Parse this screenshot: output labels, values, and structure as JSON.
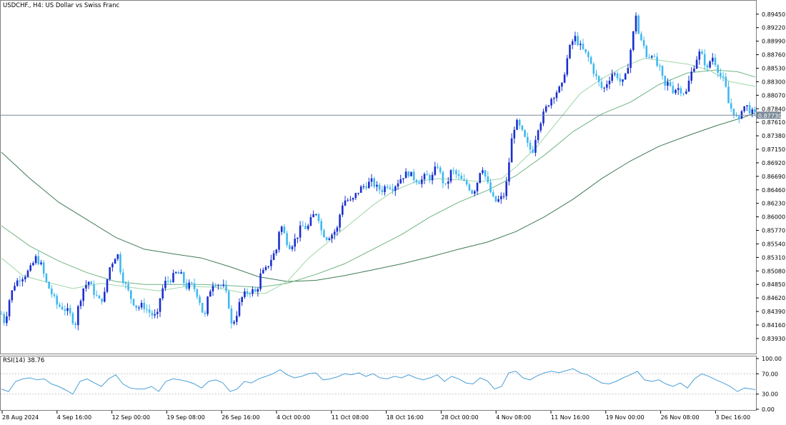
{
  "chart_data": {
    "type": "candlestick",
    "symbol_label": "USDCHF.,",
    "timeframe_label": "H4:",
    "description_label": "US Dollar vs Swiss Franc",
    "current_price_label": "0.87730",
    "current_price": 0.8773,
    "price_ylim": [
      0.8371,
      0.8963
    ],
    "price_ticks": [
      "0.89450",
      "0.89220",
      "0.88990",
      "0.88760",
      "0.88530",
      "0.88300",
      "0.88070",
      "0.87840",
      "0.87610",
      "0.87380",
      "0.87150",
      "0.86920",
      "0.86690",
      "0.86460",
      "0.86230",
      "0.86000",
      "0.85770",
      "0.85540",
      "0.85310",
      "0.85080",
      "0.84850",
      "0.84620",
      "0.84390",
      "0.84160",
      "0.83930"
    ],
    "time_labels": [
      "28 Aug 2024",
      "4 Sep 16:00",
      "12 Sep 00:00",
      "19 Sep 08:00",
      "26 Sep 16:00",
      "4 Oct 00:00",
      "11 Oct 08:00",
      "18 Oct 16:00",
      "28 Oct 00:00",
      "4 Nov 08:00",
      "11 Nov 16:00",
      "19 Nov 00:00",
      "26 Nov 08:00",
      "3 Dec 16:00"
    ],
    "price_path": [
      [
        0,
        0.8435
      ],
      [
        5,
        0.8418
      ],
      [
        10,
        0.8455
      ],
      [
        18,
        0.8485
      ],
      [
        25,
        0.8495
      ],
      [
        32,
        0.85
      ],
      [
        40,
        0.851
      ],
      [
        48,
        0.853
      ],
      [
        55,
        0.852
      ],
      [
        62,
        0.849
      ],
      [
        70,
        0.847
      ],
      [
        78,
        0.845
      ],
      [
        86,
        0.8445
      ],
      [
        92,
        0.844
      ],
      [
        98,
        0.843
      ],
      [
        103,
        0.8415
      ],
      [
        108,
        0.845
      ],
      [
        115,
        0.848
      ],
      [
        122,
        0.849
      ],
      [
        130,
        0.847
      ],
      [
        138,
        0.8455
      ],
      [
        145,
        0.847
      ],
      [
        150,
        0.851
      ],
      [
        156,
        0.8525
      ],
      [
        162,
        0.854
      ],
      [
        168,
        0.85
      ],
      [
        175,
        0.848
      ],
      [
        182,
        0.846
      ],
      [
        190,
        0.8445
      ],
      [
        198,
        0.845
      ],
      [
        205,
        0.844
      ],
      [
        212,
        0.8432
      ],
      [
        218,
        0.843
      ],
      [
        223,
        0.847
      ],
      [
        230,
        0.849
      ],
      [
        238,
        0.8495
      ],
      [
        245,
        0.8505
      ],
      [
        252,
        0.85
      ],
      [
        258,
        0.848
      ],
      [
        265,
        0.8485
      ],
      [
        272,
        0.8475
      ],
      [
        278,
        0.8455
      ],
      [
        284,
        0.8425
      ],
      [
        290,
        0.847
      ],
      [
        297,
        0.849
      ],
      [
        304,
        0.8485
      ],
      [
        311,
        0.848
      ],
      [
        317,
        0.846
      ],
      [
        322,
        0.8415
      ],
      [
        328,
        0.843
      ],
      [
        335,
        0.846
      ],
      [
        342,
        0.847
      ],
      [
        350,
        0.8475
      ],
      [
        357,
        0.847
      ],
      [
        362,
        0.85
      ],
      [
        370,
        0.851
      ],
      [
        378,
        0.853
      ],
      [
        385,
        0.8545
      ],
      [
        390,
        0.859
      ],
      [
        396,
        0.857
      ],
      [
        402,
        0.855
      ],
      [
        408,
        0.8555
      ],
      [
        415,
        0.857
      ],
      [
        420,
        0.8585
      ],
      [
        428,
        0.858
      ],
      [
        435,
        0.86
      ],
      [
        442,
        0.861
      ],
      [
        448,
        0.8575
      ],
      [
        455,
        0.8565
      ],
      [
        462,
        0.857
      ],
      [
        470,
        0.858
      ],
      [
        476,
        0.862
      ],
      [
        482,
        0.863
      ],
      [
        490,
        0.8625
      ],
      [
        497,
        0.864
      ],
      [
        504,
        0.865
      ],
      [
        511,
        0.8655
      ],
      [
        518,
        0.866
      ],
      [
        525,
        0.865
      ],
      [
        532,
        0.8645
      ],
      [
        540,
        0.8655
      ],
      [
        548,
        0.865
      ],
      [
        555,
        0.866
      ],
      [
        562,
        0.867
      ],
      [
        570,
        0.8675
      ],
      [
        578,
        0.8665
      ],
      [
        586,
        0.866
      ],
      [
        594,
        0.867
      ],
      [
        602,
        0.8665
      ],
      [
        610,
        0.869
      ],
      [
        616,
        0.8665
      ],
      [
        622,
        0.865
      ],
      [
        630,
        0.868
      ],
      [
        638,
        0.867
      ],
      [
        645,
        0.866
      ],
      [
        652,
        0.8655
      ],
      [
        660,
        0.864
      ],
      [
        666,
        0.866
      ],
      [
        672,
        0.869
      ],
      [
        678,
        0.8665
      ],
      [
        685,
        0.864
      ],
      [
        690,
        0.8625
      ],
      [
        698,
        0.863
      ],
      [
        705,
        0.864
      ],
      [
        710,
        0.869
      ],
      [
        716,
        0.875
      ],
      [
        722,
        0.876
      ],
      [
        730,
        0.874
      ],
      [
        737,
        0.872
      ],
      [
        743,
        0.871
      ],
      [
        750,
        0.875
      ],
      [
        757,
        0.877
      ],
      [
        764,
        0.879
      ],
      [
        771,
        0.8805
      ],
      [
        778,
        0.8815
      ],
      [
        784,
        0.882
      ],
      [
        790,
        0.886
      ],
      [
        797,
        0.8895
      ],
      [
        803,
        0.8905
      ],
      [
        810,
        0.889
      ],
      [
        816,
        0.888
      ],
      [
        822,
        0.887
      ],
      [
        828,
        0.885
      ],
      [
        835,
        0.883
      ],
      [
        842,
        0.8815
      ],
      [
        848,
        0.883
      ],
      [
        855,
        0.8845
      ],
      [
        862,
        0.884
      ],
      [
        868,
        0.8825
      ],
      [
        874,
        0.884
      ],
      [
        880,
        0.888
      ],
      [
        884,
        0.891
      ],
      [
        888,
        0.8945
      ],
      [
        893,
        0.89
      ],
      [
        898,
        0.8895
      ],
      [
        904,
        0.887
      ],
      [
        910,
        0.888
      ],
      [
        916,
        0.886
      ],
      [
        922,
        0.885
      ],
      [
        928,
        0.882
      ],
      [
        934,
        0.883
      ],
      [
        940,
        0.8815
      ],
      [
        946,
        0.882
      ],
      [
        952,
        0.8815
      ],
      [
        958,
        0.881
      ],
      [
        964,
        0.884
      ],
      [
        970,
        0.886
      ],
      [
        976,
        0.888
      ],
      [
        982,
        0.887
      ],
      [
        988,
        0.885
      ],
      [
        994,
        0.8875
      ],
      [
        1000,
        0.886
      ],
      [
        1006,
        0.884
      ],
      [
        1012,
        0.883
      ],
      [
        1018,
        0.879
      ],
      [
        1024,
        0.878
      ],
      [
        1028,
        0.877
      ],
      [
        1032,
        0.876
      ],
      [
        1036,
        0.8785
      ],
      [
        1042,
        0.879
      ],
      [
        1048,
        0.878
      ],
      [
        1055,
        0.8773
      ]
    ],
    "ma_slow": [
      [
        0,
        0.871
      ],
      [
        40,
        0.8665
      ],
      [
        80,
        0.8625
      ],
      [
        120,
        0.8595
      ],
      [
        160,
        0.8565
      ],
      [
        200,
        0.8545
      ],
      [
        240,
        0.8537
      ],
      [
        280,
        0.853
      ],
      [
        320,
        0.8515
      ],
      [
        360,
        0.8498
      ],
      [
        400,
        0.849
      ],
      [
        440,
        0.8492
      ],
      [
        480,
        0.85
      ],
      [
        520,
        0.851
      ],
      [
        560,
        0.852
      ],
      [
        600,
        0.8532
      ],
      [
        640,
        0.8545
      ],
      [
        680,
        0.8557
      ],
      [
        720,
        0.8575
      ],
      [
        760,
        0.86
      ],
      [
        800,
        0.863
      ],
      [
        840,
        0.8665
      ],
      [
        880,
        0.8695
      ],
      [
        920,
        0.872
      ],
      [
        960,
        0.8738
      ],
      [
        1000,
        0.8755
      ],
      [
        1040,
        0.877
      ],
      [
        1055,
        0.8777
      ]
    ],
    "ma_mid": [
      [
        0,
        0.8585
      ],
      [
        40,
        0.855
      ],
      [
        80,
        0.8525
      ],
      [
        120,
        0.8505
      ],
      [
        160,
        0.849
      ],
      [
        200,
        0.8485
      ],
      [
        240,
        0.8485
      ],
      [
        280,
        0.8485
      ],
      [
        320,
        0.8483
      ],
      [
        360,
        0.848
      ],
      [
        400,
        0.8487
      ],
      [
        440,
        0.8502
      ],
      [
        480,
        0.852
      ],
      [
        520,
        0.8545
      ],
      [
        560,
        0.857
      ],
      [
        600,
        0.86
      ],
      [
        640,
        0.8625
      ],
      [
        680,
        0.8645
      ],
      [
        720,
        0.867
      ],
      [
        760,
        0.8705
      ],
      [
        800,
        0.8745
      ],
      [
        840,
        0.8775
      ],
      [
        880,
        0.8795
      ],
      [
        920,
        0.8825
      ],
      [
        960,
        0.8845
      ],
      [
        1000,
        0.885
      ],
      [
        1030,
        0.8847
      ],
      [
        1055,
        0.8838
      ]
    ],
    "ma_fast": [
      [
        0,
        0.853
      ],
      [
        30,
        0.85
      ],
      [
        60,
        0.849
      ],
      [
        100,
        0.8478
      ],
      [
        140,
        0.8487
      ],
      [
        180,
        0.848
      ],
      [
        220,
        0.8474
      ],
      [
        260,
        0.8482
      ],
      [
        300,
        0.848
      ],
      [
        340,
        0.847
      ],
      [
        370,
        0.847
      ],
      [
        400,
        0.849
      ],
      [
        430,
        0.853
      ],
      [
        460,
        0.856
      ],
      [
        490,
        0.859
      ],
      [
        520,
        0.862
      ],
      [
        550,
        0.8645
      ],
      [
        580,
        0.866
      ],
      [
        610,
        0.8665
      ],
      [
        640,
        0.8663
      ],
      [
        670,
        0.866
      ],
      [
        700,
        0.8665
      ],
      [
        720,
        0.8685
      ],
      [
        750,
        0.872
      ],
      [
        780,
        0.8765
      ],
      [
        810,
        0.881
      ],
      [
        840,
        0.8835
      ],
      [
        870,
        0.8855
      ],
      [
        900,
        0.887
      ],
      [
        930,
        0.8865
      ],
      [
        960,
        0.886
      ],
      [
        990,
        0.885
      ],
      [
        1020,
        0.883
      ],
      [
        1055,
        0.8822
      ]
    ],
    "rsi_label": "RSI(14) 38.76",
    "rsi_value": 38.76,
    "rsi_ylim": [
      0,
      100
    ],
    "rsi_ticks": [
      "100.00",
      "70.00",
      "30.00",
      "0.00"
    ],
    "rsi_levels": [
      70,
      30
    ],
    "rsi_path": [
      [
        0,
        40
      ],
      [
        10,
        35
      ],
      [
        20,
        55
      ],
      [
        30,
        60
      ],
      [
        40,
        62
      ],
      [
        50,
        58
      ],
      [
        60,
        60
      ],
      [
        70,
        50
      ],
      [
        80,
        45
      ],
      [
        90,
        38
      ],
      [
        100,
        30
      ],
      [
        110,
        55
      ],
      [
        120,
        60
      ],
      [
        130,
        52
      ],
      [
        140,
        45
      ],
      [
        150,
        60
      ],
      [
        160,
        68
      ],
      [
        170,
        50
      ],
      [
        180,
        42
      ],
      [
        190,
        40
      ],
      [
        200,
        40
      ],
      [
        210,
        45
      ],
      [
        220,
        35
      ],
      [
        230,
        55
      ],
      [
        240,
        60
      ],
      [
        250,
        58
      ],
      [
        260,
        55
      ],
      [
        270,
        50
      ],
      [
        280,
        42
      ],
      [
        290,
        55
      ],
      [
        300,
        58
      ],
      [
        310,
        52
      ],
      [
        320,
        35
      ],
      [
        330,
        40
      ],
      [
        340,
        55
      ],
      [
        350,
        52
      ],
      [
        360,
        60
      ],
      [
        370,
        65
      ],
      [
        380,
        70
      ],
      [
        390,
        78
      ],
      [
        400,
        68
      ],
      [
        410,
        62
      ],
      [
        420,
        65
      ],
      [
        430,
        70
      ],
      [
        440,
        72
      ],
      [
        450,
        58
      ],
      [
        460,
        60
      ],
      [
        470,
        64
      ],
      [
        480,
        70
      ],
      [
        490,
        68
      ],
      [
        500,
        72
      ],
      [
        510,
        65
      ],
      [
        520,
        70
      ],
      [
        530,
        62
      ],
      [
        540,
        60
      ],
      [
        550,
        65
      ],
      [
        560,
        62
      ],
      [
        570,
        68
      ],
      [
        580,
        62
      ],
      [
        590,
        58
      ],
      [
        600,
        62
      ],
      [
        610,
        68
      ],
      [
        620,
        55
      ],
      [
        630,
        65
      ],
      [
        640,
        60
      ],
      [
        650,
        52
      ],
      [
        660,
        50
      ],
      [
        670,
        62
      ],
      [
        680,
        56
      ],
      [
        690,
        40
      ],
      [
        700,
        45
      ],
      [
        710,
        72
      ],
      [
        720,
        75
      ],
      [
        730,
        62
      ],
      [
        740,
        58
      ],
      [
        750,
        66
      ],
      [
        760,
        72
      ],
      [
        770,
        75
      ],
      [
        780,
        72
      ],
      [
        790,
        76
      ],
      [
        800,
        80
      ],
      [
        810,
        72
      ],
      [
        820,
        68
      ],
      [
        830,
        60
      ],
      [
        840,
        52
      ],
      [
        850,
        50
      ],
      [
        860,
        55
      ],
      [
        870,
        62
      ],
      [
        880,
        68
      ],
      [
        890,
        75
      ],
      [
        900,
        58
      ],
      [
        910,
        55
      ],
      [
        920,
        58
      ],
      [
        930,
        50
      ],
      [
        940,
        45
      ],
      [
        950,
        52
      ],
      [
        960,
        42
      ],
      [
        970,
        60
      ],
      [
        980,
        70
      ],
      [
        990,
        65
      ],
      [
        1000,
        58
      ],
      [
        1010,
        52
      ],
      [
        1020,
        45
      ],
      [
        1030,
        35
      ],
      [
        1040,
        42
      ],
      [
        1050,
        40
      ],
      [
        1055,
        38.76
      ]
    ],
    "colors": {
      "bull": "#1a2fcf",
      "bear": "#40b8f0",
      "ma_fast": "#9fd6a7",
      "ma_mid": "#6fb482",
      "ma_slow": "#3f7a56",
      "rsi": "#4a9fd8",
      "grid": "#c8c8c8",
      "text": "#000000",
      "price_tag_bg": "#7a8a98"
    },
    "grid": false,
    "legend": "none"
  }
}
